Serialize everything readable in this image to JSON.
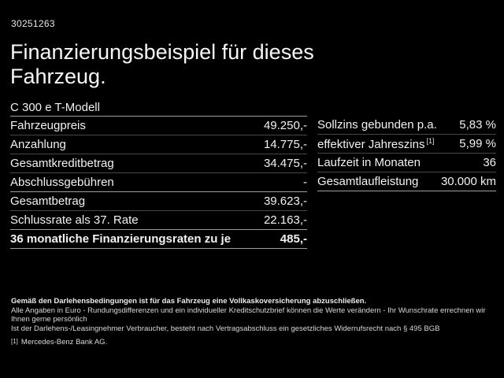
{
  "page": {
    "vehicle_id": "30251263",
    "title_line1": "Finanzierungsbeispiel für dieses",
    "title_line2": "Fahrzeug.",
    "model": "C 300 e T-Modell"
  },
  "left_table": {
    "rows": [
      {
        "label": "Fahrzeugpreis",
        "value": "49.250,-"
      },
      {
        "label": "Anzahlung",
        "value": "14.775,-"
      },
      {
        "label": "Gesamtkreditbetrag",
        "value": "34.475,-"
      },
      {
        "label": "Abschlussgebühren",
        "value": "-"
      },
      {
        "label": "Gesamtbetrag",
        "value": "39.623,-"
      },
      {
        "label": "Schlussrate als 37. Rate",
        "value": "22.163,-"
      }
    ],
    "total_row": {
      "label": "36 monatliche Finanzierungsraten zu je",
      "value": "485,-"
    }
  },
  "right_table": {
    "rows": [
      {
        "label": "Sollzins gebunden p.a.",
        "value": "5,83 %"
      },
      {
        "label": "effektiver Jahreszins",
        "footnote": "[1]",
        "value": "5,99 %"
      },
      {
        "label": "Laufzeit in Monaten",
        "value": "36"
      },
      {
        "label": "Gesamtlaufleistung",
        "value": "30.000 km"
      }
    ]
  },
  "footer": {
    "bold_line": "Gemäß den Darlehensbedingungen ist für das Fahrzeug eine Vollkaskoversicherung abzuschließen.",
    "line2": "Alle Angaben in Euro - Rundungsdifferenzen und ein individueller Kreditschutzbrief können die Werte verändern - Ihr Wunschrate errechnen wir Ihnen gerne persönlich",
    "line3": "Ist der Darlehens-/Leasingnehmer Verbraucher, besteht nach Vertragsabschluss ein gesetzliches Widerrufsrecht nach § 495 BGB",
    "footnote_marker": "[1]",
    "footnote_text": "Mercedes-Benz Bank AG."
  },
  "colors": {
    "background": "#000000",
    "text": "#f2f2f2",
    "separator_dim": "#484848",
    "separator_bright": "#9e9e9e"
  }
}
